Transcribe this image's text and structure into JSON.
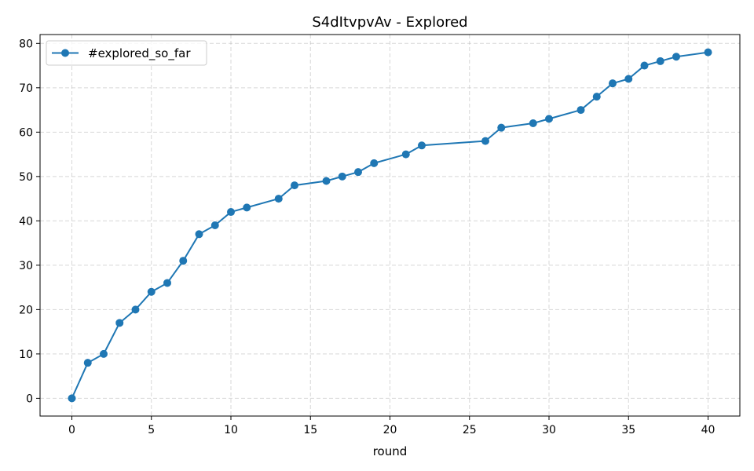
{
  "chart_data": {
    "type": "line",
    "title": "S4dItvpvAv - Explored",
    "xlabel": "round",
    "ylabel": "",
    "xlim": [
      -2,
      42
    ],
    "ylim": [
      -4,
      82
    ],
    "xticks": [
      0,
      5,
      10,
      15,
      20,
      25,
      30,
      35,
      40
    ],
    "yticks": [
      0,
      10,
      20,
      30,
      40,
      50,
      60,
      70,
      80
    ],
    "grid": true,
    "legend": "top-left",
    "series": [
      {
        "name": "#explored_so_far",
        "color": "#1f77b4",
        "marker": "circle",
        "x": [
          0,
          1,
          2,
          3,
          4,
          5,
          6,
          7,
          8,
          9,
          10,
          11,
          13,
          14,
          16,
          17,
          18,
          19,
          21,
          22,
          26,
          27,
          29,
          30,
          32,
          33,
          34,
          35,
          36,
          37,
          38,
          40
        ],
        "y": [
          0,
          8,
          10,
          17,
          20,
          24,
          26,
          31,
          37,
          39,
          42,
          43,
          45,
          48,
          49,
          50,
          51,
          53,
          55,
          57,
          58,
          61,
          62,
          63,
          65,
          68,
          71,
          72,
          75,
          76,
          77,
          78
        ]
      }
    ]
  }
}
